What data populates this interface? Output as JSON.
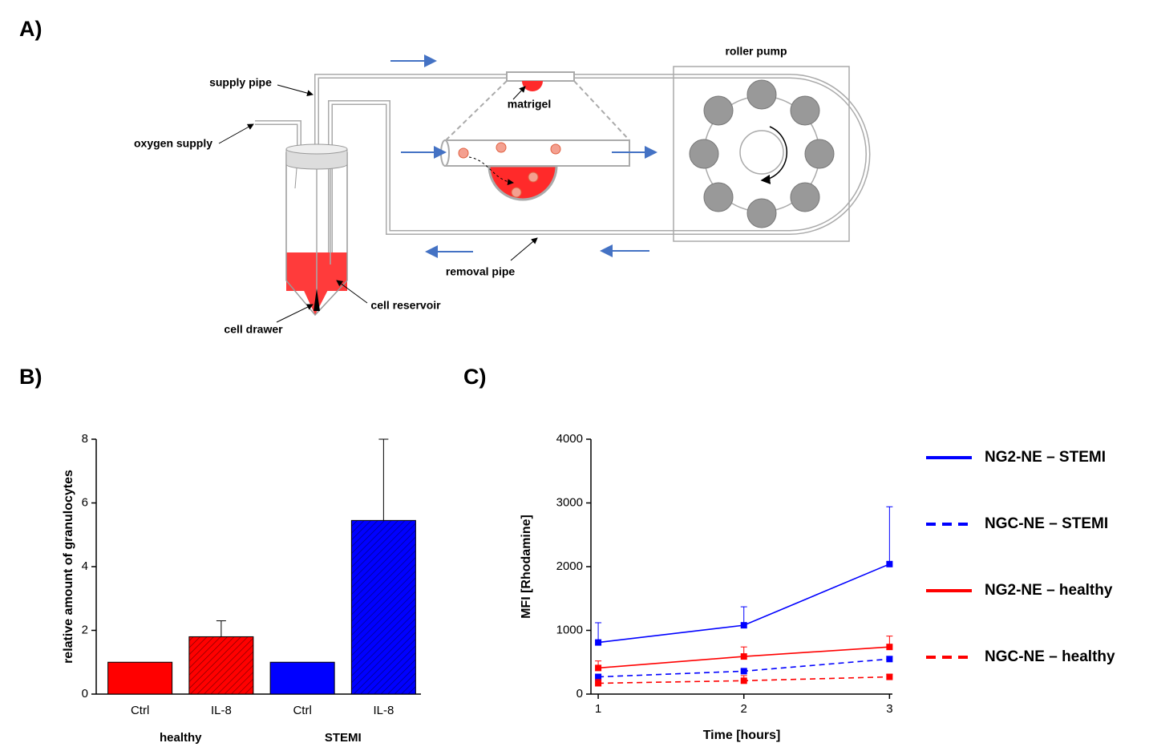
{
  "panels": [
    "A)",
    "B)",
    "C)"
  ],
  "diagram": {
    "labels": {
      "roller_pump": "roller pump",
      "supply_pipe": "supply pipe",
      "matrigel": "matrigel",
      "oxygen_supply": "oxygen supply",
      "removal_pipe": "removal pipe",
      "cell_reservoir": "cell reservoir",
      "cell_drawer": "cell drawer"
    }
  },
  "chart_data": [
    {
      "type": "bar",
      "ylabel": "relative amount of granulocytes",
      "categories": [
        "Ctrl",
        "IL-8",
        "Ctrl",
        "IL-8"
      ],
      "group_labels": [
        "healthy",
        "STEMI"
      ],
      "values": [
        1,
        1.8,
        1,
        5.45
      ],
      "errors": [
        0,
        0.5,
        0,
        2.55
      ],
      "colors": [
        "#ff0000",
        "#ff0000",
        "#0000ff",
        "#0000ff"
      ],
      "hatch": [
        false,
        true,
        false,
        true
      ],
      "ylim": [
        0,
        8
      ],
      "yticks": [
        0,
        2,
        4,
        6,
        8
      ]
    },
    {
      "type": "line",
      "xlabel": "Time [hours]",
      "ylabel": "MFI [Rhodamine]",
      "x": [
        1,
        2,
        3
      ],
      "xlim": [
        0.95,
        3.02
      ],
      "xticks": [
        1,
        2,
        3
      ],
      "ylim": [
        0,
        4000
      ],
      "yticks": [
        0,
        1000,
        2000,
        3000,
        4000
      ],
      "legend": "right",
      "series": [
        {
          "name": "NG2-NE – STEMI",
          "color": "#0000ff",
          "dash": false,
          "values": [
            810,
            1080,
            2040
          ],
          "errors": [
            310,
            290,
            900
          ]
        },
        {
          "name": "NGC-NE – STEMI",
          "color": "#0000ff",
          "dash": true,
          "values": [
            270,
            360,
            550
          ],
          "errors": [
            20,
            30,
            40
          ]
        },
        {
          "name": "NG2-NE – healthy",
          "color": "#ff0000",
          "dash": false,
          "values": [
            410,
            590,
            740
          ],
          "errors": [
            110,
            150,
            170
          ]
        },
        {
          "name": "NGC-NE – healthy",
          "color": "#ff0000",
          "dash": true,
          "values": [
            170,
            210,
            270
          ],
          "errors": [
            60,
            80,
            40
          ]
        }
      ]
    }
  ]
}
